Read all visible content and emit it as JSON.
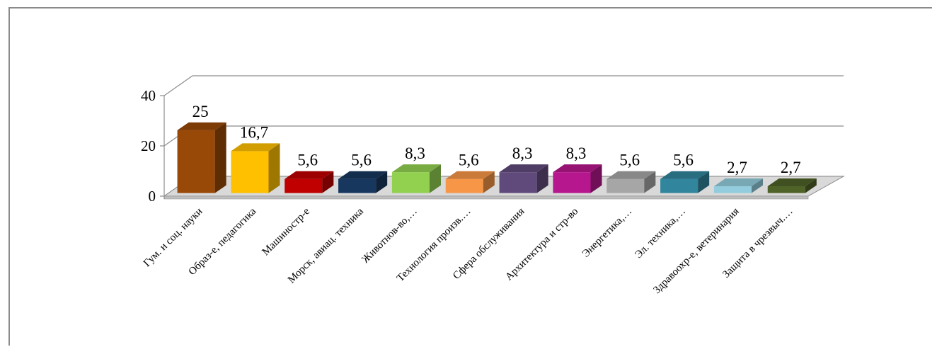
{
  "chart_data": {
    "type": "bar",
    "style": "3d-column",
    "categories": [
      "Гум. и соц. науки",
      "Образ-е, педагогика",
      "Машиностр-е",
      "Морск, авиац. техника",
      "Животнов-во,…",
      "Технология произв.…",
      "Сфера обслуживания",
      "Архитектура  и стр-во",
      "Энергетика,…",
      "Эл. техника,…",
      "Здравоохр-е, ветеринария",
      "Защита в чрезвыч.…"
    ],
    "values": [
      25,
      16.7,
      5.6,
      5.6,
      8.3,
      5.6,
      8.3,
      8.3,
      5.6,
      5.6,
      2.7,
      2.7
    ],
    "data_labels": [
      "25",
      "16,7",
      "5,6",
      "5,6",
      "8,3",
      "5,6",
      "8,3",
      "8,3",
      "5,6",
      "5,6",
      "2,7",
      "2,7"
    ],
    "colors": [
      "#984807",
      "#ffc000",
      "#c00000",
      "#17375e",
      "#92d050",
      "#f79646",
      "#604a7b",
      "#b7178e",
      "#a6a6a6",
      "#31859c",
      "#93cddd",
      "#4f6228"
    ],
    "yticks": [
      "0",
      "20",
      "40"
    ],
    "ylim": [
      0,
      40
    ],
    "grid": true,
    "legend": "none"
  }
}
